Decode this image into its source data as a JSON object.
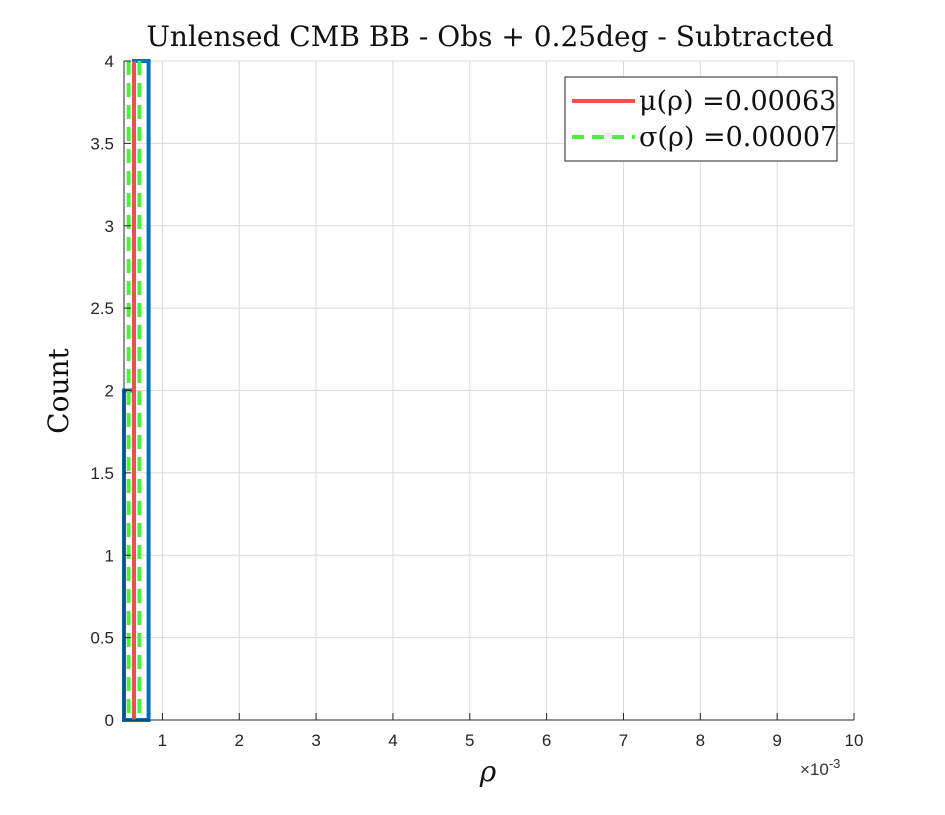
{
  "chart_data": {
    "type": "bar",
    "title": "Unlensed CMB BB - Obs + 0.25deg - Subtracted",
    "xlabel": "ρ",
    "ylabel": "Count",
    "x_exponent_label": "×10",
    "x_exponent_power": "-3",
    "xlim": [
      0.0005,
      0.01
    ],
    "ylim": [
      0,
      4
    ],
    "x_ticks": [
      0.001,
      0.002,
      0.003,
      0.004,
      0.005,
      0.006,
      0.007,
      0.008,
      0.009,
      0.01
    ],
    "x_tick_labels": [
      "1",
      "2",
      "3",
      "4",
      "5",
      "6",
      "7",
      "8",
      "9",
      "10"
    ],
    "y_ticks": [
      0,
      0.5,
      1,
      1.5,
      2,
      2.5,
      3,
      3.5,
      4
    ],
    "y_tick_labels": [
      "0",
      "0.5",
      "1",
      "1.5",
      "2",
      "2.5",
      "3",
      "3.5",
      "4"
    ],
    "grid": true,
    "histogram": {
      "color": "#0072bd",
      "bins": [
        {
          "x0": 0.0005,
          "x1": 0.00063,
          "count": 2
        },
        {
          "x0": 0.00063,
          "x1": 0.00082,
          "count": 4
        },
        {
          "x0": 0.00082,
          "x1": 0.01,
          "count": 0
        }
      ]
    },
    "mean_line": {
      "value": 0.00063,
      "color": "#f0504a"
    },
    "std_lines": {
      "values": [
        0.00056,
        0.0007
      ],
      "color": "#4df03e"
    },
    "legend": {
      "position": "top-right",
      "entries": [
        {
          "label": "μ(ρ) =0.00063",
          "color": "#f0504a",
          "style": "solid"
        },
        {
          "label": "σ(ρ) =0.00007",
          "color": "#4df03e",
          "style": "dashed"
        }
      ]
    }
  }
}
